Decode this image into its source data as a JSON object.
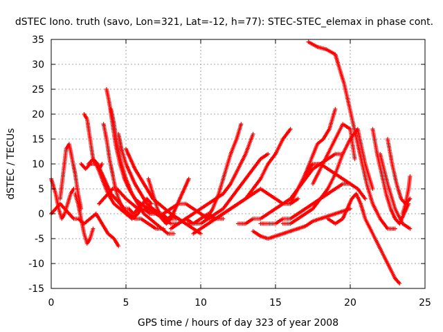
{
  "chart_data": {
    "type": "scatter",
    "title": "dSTEC Iono. truth (savo, Lon=321, Lat=-12, h=77): STEC-STEC_elemax in phase cont.",
    "xlabel": "GPS time / hours of day 323 of year 2008",
    "ylabel": "dSTEC  / TECUs",
    "xlim": [
      0,
      25
    ],
    "ylim": [
      -15,
      35
    ],
    "xticks": [
      0,
      5,
      10,
      15,
      20,
      25
    ],
    "yticks": [
      -15,
      -10,
      -5,
      0,
      5,
      10,
      15,
      20,
      25,
      30,
      35
    ],
    "grid": true,
    "marker": "+",
    "color": "#ff0000",
    "series": [
      {
        "x": [
          0.0,
          0.3,
          0.5,
          0.7,
          0.9,
          1.1,
          1.3,
          1.5
        ],
        "y": [
          7,
          4,
          1,
          -1,
          0,
          2,
          4,
          5
        ]
      },
      {
        "x": [
          0.6,
          0.8,
          1.0,
          1.2,
          1.4,
          1.6,
          1.8,
          2.0
        ],
        "y": [
          3,
          8,
          13,
          14,
          11,
          8,
          4,
          1
        ]
      },
      {
        "x": [
          0.0,
          0.3,
          0.6,
          0.9,
          1.2,
          1.5,
          1.8,
          2.2,
          2.6,
          3.0,
          3.4,
          3.8,
          4.2,
          4.5
        ],
        "y": [
          0,
          1,
          2,
          1,
          0,
          -1,
          -1,
          -2,
          -1,
          0,
          -2,
          -4,
          -5,
          -6.5
        ]
      },
      {
        "x": [
          1.6,
          1.8,
          2.0,
          2.2,
          2.4,
          2.6,
          2.8
        ],
        "y": [
          4,
          2,
          -1,
          -4,
          -6,
          -5,
          -3
        ]
      },
      {
        "x": [
          2.2,
          2.4,
          2.6,
          2.8,
          3.0,
          3.2,
          3.4
        ],
        "y": [
          20,
          19,
          15,
          11,
          10,
          9,
          10
        ]
      },
      {
        "x": [
          2.0,
          2.3,
          2.6,
          3.0,
          3.4,
          3.8,
          4.2,
          4.6,
          5.0,
          5.4,
          5.8,
          6.0
        ],
        "y": [
          10,
          9,
          10,
          10,
          7,
          4,
          2,
          1,
          0,
          -1,
          0,
          1
        ]
      },
      {
        "x": [
          2.5,
          2.8,
          3.1,
          3.4,
          3.7,
          4.0,
          4.3,
          4.6,
          4.9,
          5.2,
          5.5,
          5.8,
          6.1,
          6.4,
          6.7
        ],
        "y": [
          10,
          11,
          10,
          8,
          6,
          4,
          3,
          2,
          1,
          1,
          0,
          1,
          2,
          3,
          2
        ]
      },
      {
        "x": [
          3.2,
          3.5,
          3.8,
          4.1,
          4.4,
          4.7,
          5.0,
          5.4,
          5.8,
          6.2,
          6.6,
          7.0,
          7.4,
          7.8,
          8.2
        ],
        "y": [
          2,
          3,
          4,
          5,
          5,
          4,
          3,
          2,
          1,
          1,
          0,
          0,
          0,
          -1,
          0
        ]
      },
      {
        "x": [
          3.5,
          3.7,
          3.9,
          4.1,
          4.3,
          4.5,
          4.8,
          5.2,
          5.6,
          6.0,
          6.5,
          7.0,
          7.5
        ],
        "y": [
          18,
          15,
          11,
          8,
          5,
          3,
          1,
          0,
          -1,
          -1,
          -2,
          -3,
          -3
        ]
      },
      {
        "x": [
          3.7,
          3.9,
          4.1,
          4.3,
          4.6,
          4.9,
          5.2,
          5.6,
          6.0,
          6.5,
          7.0,
          7.5,
          8.0,
          8.5,
          9.0
        ],
        "y": [
          25,
          22,
          18,
          14,
          10,
          7,
          5,
          3,
          2,
          1,
          0,
          -1,
          -2,
          -2,
          -1
        ]
      },
      {
        "x": [
          4.0,
          4.2,
          4.4,
          4.7,
          5.0,
          5.4,
          5.8,
          6.2,
          6.6,
          7.0,
          7.4,
          7.8,
          8.2
        ],
        "y": [
          21,
          18,
          14,
          10,
          7,
          4,
          2,
          0,
          -1,
          -2,
          -3,
          -4,
          -4
        ]
      },
      {
        "x": [
          4.5,
          4.7,
          5.0,
          5.3,
          5.6,
          6.0,
          6.4,
          6.8,
          7.2,
          7.6,
          8.0,
          8.5,
          9.0,
          9.5,
          10.0
        ],
        "y": [
          16,
          13,
          10,
          8,
          6,
          4,
          2,
          1,
          0,
          -1,
          -1,
          -1,
          -2,
          -3,
          -4
        ]
      },
      {
        "x": [
          5.0,
          5.3,
          5.6,
          6.0,
          6.4,
          6.8,
          7.2,
          7.6,
          8.0,
          8.5,
          9.0,
          9.5,
          10.0,
          10.5,
          11.0,
          11.5
        ],
        "y": [
          13,
          11,
          9,
          7,
          5,
          3,
          2,
          1,
          0,
          -1,
          -2,
          -2,
          -1,
          0,
          -1,
          -1
        ]
      },
      {
        "x": [
          6.5,
          6.7,
          6.9,
          7.1,
          7.4,
          7.7,
          8.0,
          8.3,
          8.6,
          8.9,
          9.2
        ],
        "y": [
          7,
          5,
          3,
          1,
          -1,
          -2,
          -1,
          1,
          3,
          5,
          7
        ]
      },
      {
        "x": [
          7.5,
          8.0,
          8.5,
          9.0,
          9.5,
          10.0,
          10.4,
          10.8,
          11.2,
          11.6,
          12.0,
          12.4,
          12.7
        ],
        "y": [
          0,
          1,
          2,
          2,
          1,
          0,
          -1,
          1,
          4,
          8,
          12,
          15,
          18
        ]
      },
      {
        "x": [
          8.0,
          8.5,
          9.0,
          9.5,
          10.0,
          10.5,
          11.0,
          11.5,
          12.0,
          12.5,
          13.0,
          13.5
        ],
        "y": [
          -3,
          -2,
          -1,
          0,
          1,
          2,
          3,
          4,
          6,
          9,
          12,
          16
        ]
      },
      {
        "x": [
          9.5,
          10.0,
          10.5,
          11.0,
          11.5,
          12.0,
          12.5,
          13.0,
          13.5,
          14.0,
          14.5,
          15.0,
          15.5,
          16.0
        ],
        "y": [
          -4,
          -3,
          -2,
          -1,
          0,
          1,
          2,
          3,
          5,
          7,
          10,
          12,
          15,
          17
        ]
      },
      {
        "x": [
          9.0,
          9.5,
          10.0,
          10.5,
          11.0,
          11.5,
          12.0,
          12.5,
          13.0,
          13.5,
          14.0,
          14.5
        ],
        "y": [
          -1,
          -2,
          -2,
          -1,
          0,
          1,
          3,
          5,
          7,
          9,
          11,
          12
        ]
      },
      {
        "x": [
          10.0,
          10.5,
          11.0,
          11.5,
          12.0,
          12.5,
          13.0,
          13.5,
          14.0,
          14.5,
          15.0,
          15.5,
          16.0,
          16.5
        ],
        "y": [
          0,
          -1,
          -1,
          0,
          1,
          2,
          3,
          4,
          5,
          4,
          3,
          2,
          2,
          3
        ]
      },
      {
        "x": [
          12.5,
          13.0,
          13.5,
          14.0,
          14.5,
          15.0,
          15.5,
          16.0,
          16.5,
          17.0,
          17.5,
          18.0,
          18.5,
          19.0,
          19.5
        ],
        "y": [
          -2,
          -2,
          -1,
          -1,
          0,
          1,
          2,
          3,
          5,
          7,
          9,
          10,
          11,
          12,
          12
        ]
      },
      {
        "x": [
          13.5,
          14.0,
          14.5,
          15.0,
          15.5,
          16.0,
          16.5,
          17.0,
          17.5,
          18.0,
          18.5,
          19.0,
          19.5,
          20.0
        ],
        "y": [
          -3.5,
          -4.5,
          -5,
          -4.5,
          -4,
          -3.5,
          -3,
          -2.5,
          -1.5,
          -1,
          -0.5,
          0,
          0.5,
          1
        ]
      },
      {
        "x": [
          14.0,
          14.5,
          15.0,
          15.5,
          16.0,
          16.5,
          17.0,
          17.5,
          18.0,
          18.5,
          19.0,
          19.5,
          20.0,
          20.5,
          21.0
        ],
        "y": [
          -2,
          -2,
          -2,
          -1,
          -1,
          0,
          1,
          2,
          3,
          4,
          5,
          6,
          6,
          5,
          3
        ]
      },
      {
        "x": [
          15.5,
          16.0,
          16.5,
          17.0,
          17.5,
          18.0,
          18.5,
          19.0,
          19.5,
          20.0,
          20.5,
          21.0,
          21.5
        ],
        "y": [
          -2,
          -2,
          -1,
          0,
          1,
          3,
          5,
          8,
          12,
          15,
          17,
          10,
          5
        ]
      },
      {
        "x": [
          16.0,
          16.5,
          17.0,
          17.5,
          18.0,
          18.5,
          19.0,
          19.5,
          20.0
        ],
        "y": [
          2,
          5,
          8,
          10,
          10,
          9,
          8,
          7,
          6
        ]
      },
      {
        "x": [
          17.0,
          17.4,
          17.8,
          18.2,
          18.6,
          18.8,
          19.0
        ],
        "y": [
          8,
          11,
          14,
          15,
          17,
          19,
          21
        ]
      },
      {
        "x": [
          17.5,
          18.0,
          18.5,
          19.0,
          19.5,
          20.0,
          20.3
        ],
        "y": [
          6,
          9,
          12,
          15,
          18,
          17,
          11
        ]
      },
      {
        "x": [
          17.2,
          17.8,
          18.4,
          19.0,
          19.3,
          19.6,
          19.9,
          20.2,
          20.5,
          20.8,
          21.1,
          21.5,
          22.0,
          22.5,
          23.0
        ],
        "y": [
          34.5,
          33.5,
          33,
          32,
          29,
          26,
          22,
          18,
          14,
          10,
          6,
          2,
          -1,
          -3,
          -3
        ]
      },
      {
        "x": [
          18.5,
          19.0,
          19.5,
          19.8,
          20.1,
          20.4,
          20.7,
          21.0,
          21.5,
          22.0,
          22.5,
          23.0,
          23.3
        ],
        "y": [
          -1,
          -2,
          -1,
          1,
          3,
          4,
          2,
          -1,
          -4,
          -7,
          -10,
          -13,
          -14
        ]
      },
      {
        "x": [
          21.5,
          21.8,
          22.1,
          22.4,
          22.7,
          23.0,
          23.3,
          23.6,
          23.9
        ],
        "y": [
          17,
          12,
          8,
          4,
          1,
          -1,
          -2,
          0,
          2
        ]
      },
      {
        "x": [
          22.5,
          22.8,
          23.1,
          23.4,
          23.7,
          24.0
        ],
        "y": [
          15,
          10,
          6,
          3,
          2,
          3
        ]
      },
      {
        "x": [
          22.0,
          22.5,
          23.0,
          23.5,
          24.0
        ],
        "y": [
          12,
          6,
          1,
          -2,
          -3
        ]
      },
      {
        "x": [
          23.5,
          23.7,
          23.9,
          24.0
        ],
        "y": [
          0,
          2,
          5,
          7.5
        ]
      }
    ]
  }
}
